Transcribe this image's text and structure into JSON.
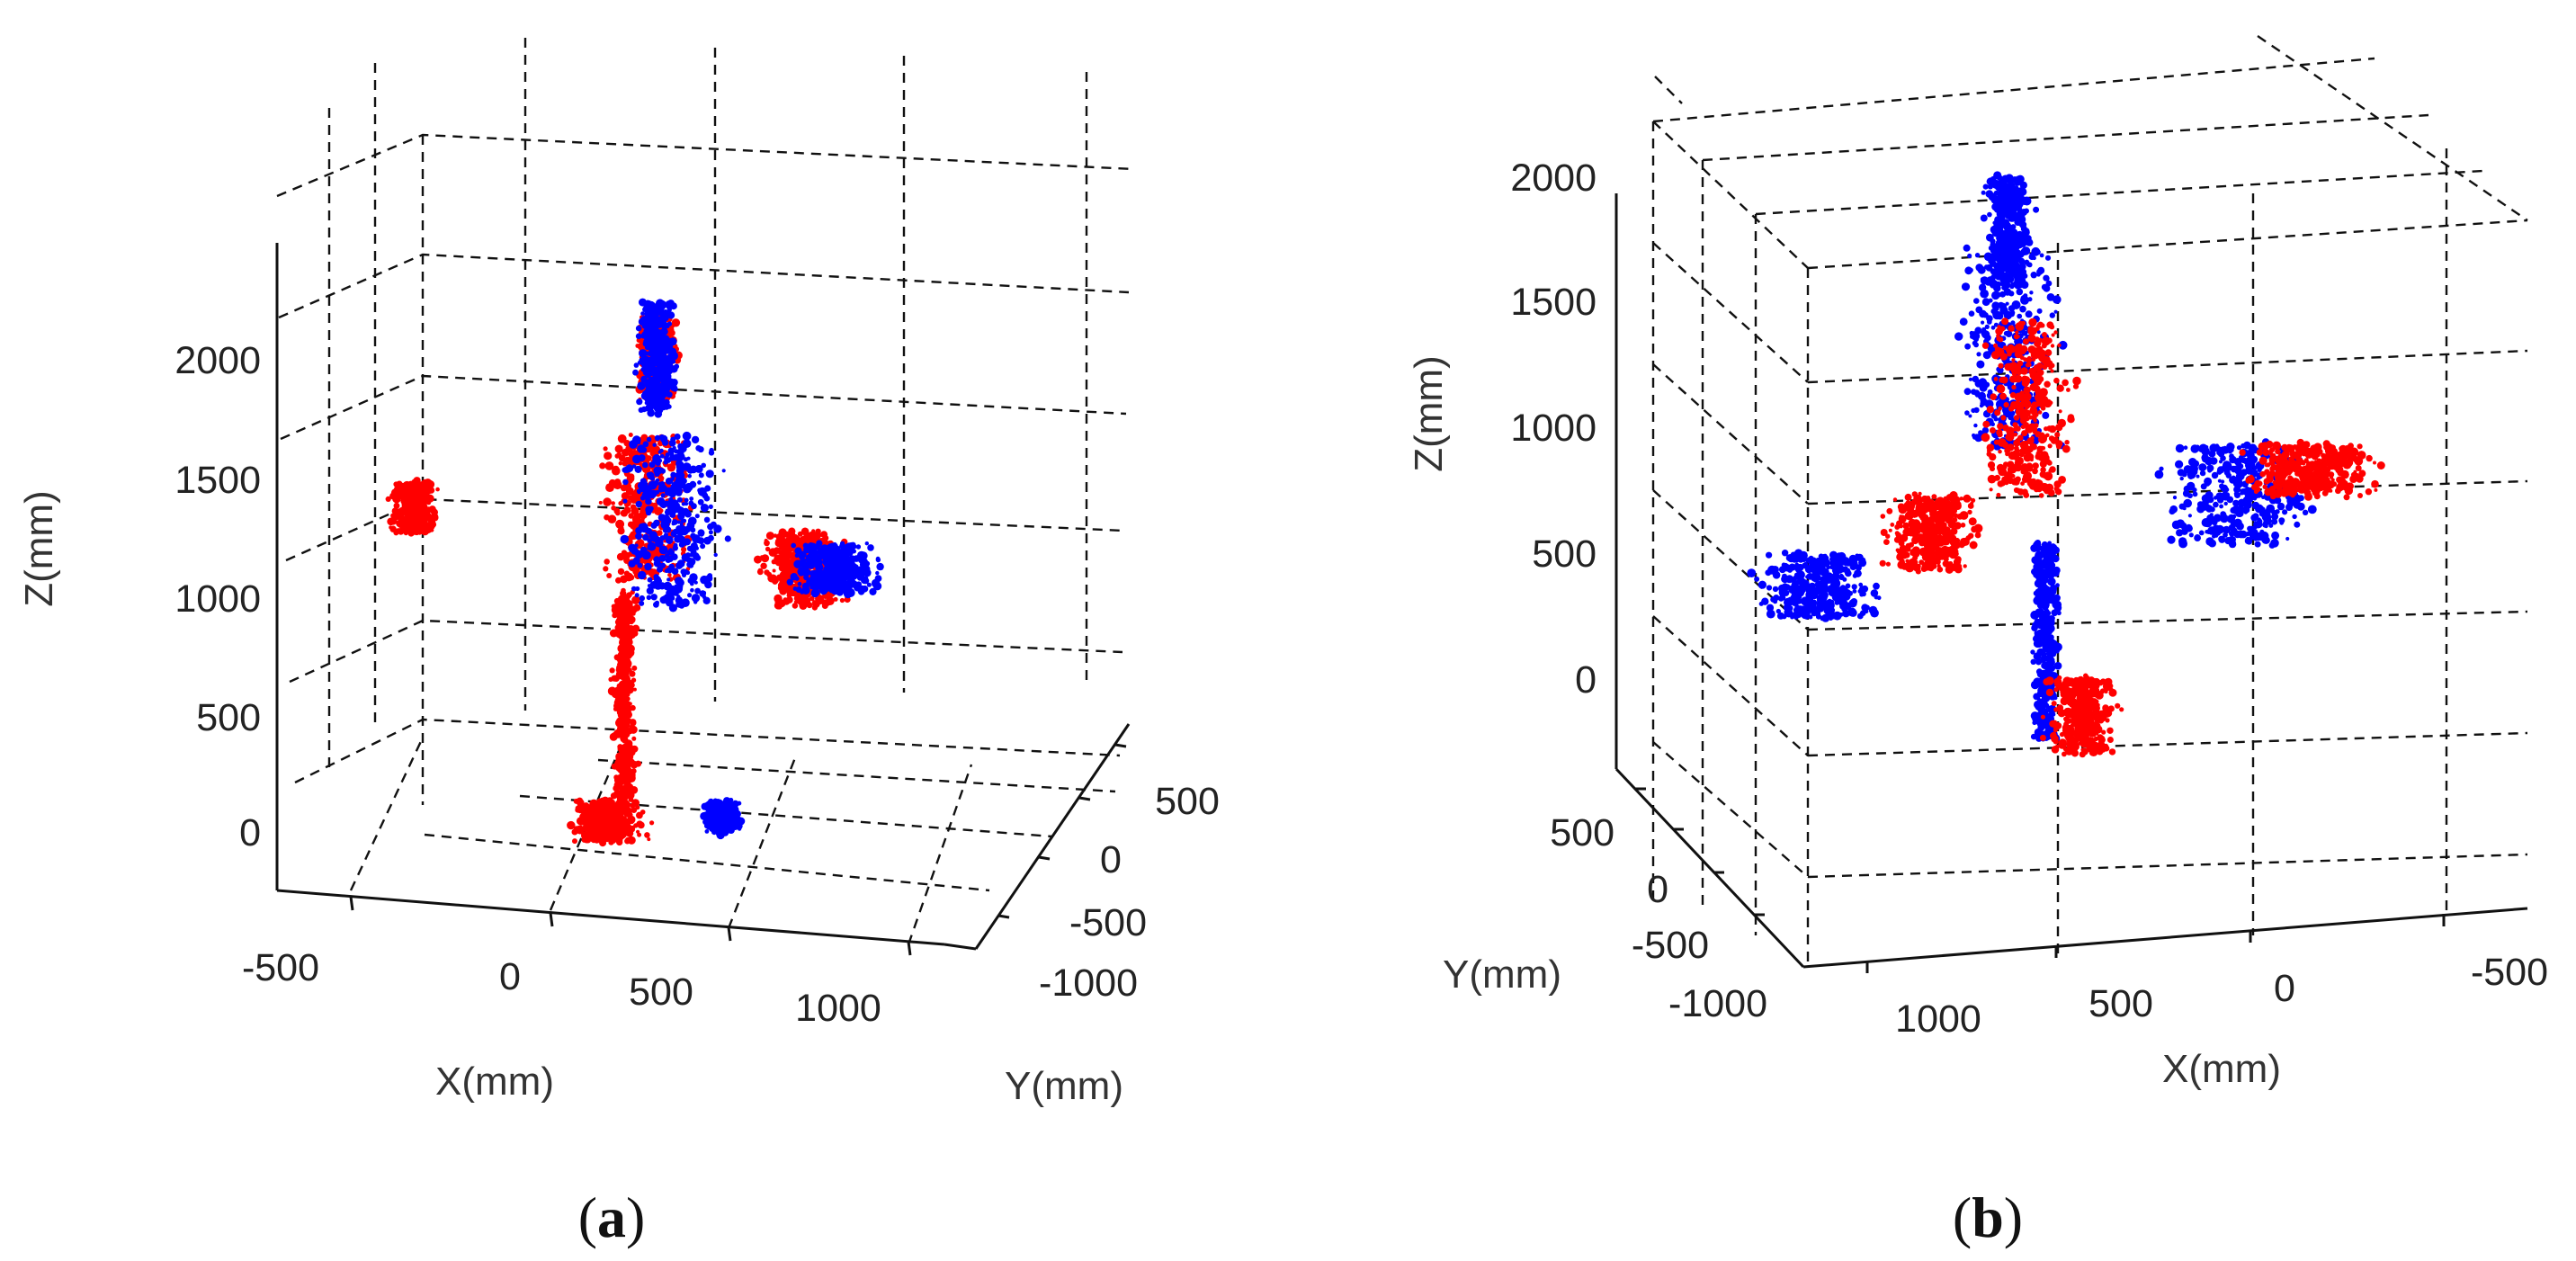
{
  "chart_data": [
    {
      "type": "scatter",
      "subtype": "3d-point-cloud",
      "panel_label": "a",
      "xlabel": "X(mm)",
      "ylabel": "Y(mm)",
      "zlabel": "Z(mm)",
      "x_ticks": [
        "-500",
        "0",
        "500",
        "1000"
      ],
      "y_ticks": [
        "500",
        "0",
        "-500",
        "-1000"
      ],
      "z_ticks": [
        "2000",
        "1500",
        "1000",
        "500",
        "0"
      ],
      "xlim": [
        -750,
        1300
      ],
      "ylim": [
        -1100,
        750
      ],
      "zlim": [
        -200,
        2400
      ],
      "grid": true,
      "series": [
        {
          "color": "#ff0000",
          "parts": [
            {
              "x": 220,
              "y": 0,
              "z": [
                1100,
                1700
              ],
              "spread": 170
            },
            {
              "x": 250,
              "y": 0,
              "z": [
                1850,
                2200
              ],
              "spread": 80
            },
            {
              "x": -500,
              "y": 0,
              "z": [
                1300,
                1500
              ],
              "spread": 90
            },
            {
              "x": 700,
              "y": 0,
              "z": [
                1000,
                1300
              ],
              "spread": 160
            },
            {
              "x": 150,
              "y": 0,
              "z": [
                200,
                1050
              ],
              "spread": 45
            },
            {
              "x": 100,
              "y": 0,
              "z": [
                20,
                180
              ],
              "spread": 140
            }
          ]
        },
        {
          "color": "#0000ff",
          "parts": [
            {
              "x": 250,
              "y": 0,
              "z": [
                1800,
                2250
              ],
              "spread": 70
            },
            {
              "x": 300,
              "y": 0,
              "z": [
                1000,
                1700
              ],
              "spread": 190
            },
            {
              "x": 800,
              "y": 0,
              "z": [
                1050,
                1250
              ],
              "spread": 170
            },
            {
              "x": 450,
              "y": 0,
              "z": [
                60,
                180
              ],
              "spread": 70
            }
          ]
        }
      ]
    },
    {
      "type": "scatter",
      "subtype": "3d-point-cloud",
      "panel_label": "b",
      "xlabel": "X(mm)",
      "ylabel": "Y(mm)",
      "zlabel": "Z(mm)",
      "x_ticks": [
        "1000",
        "500",
        "0",
        "-500"
      ],
      "y_ticks": [
        "500",
        "0",
        "-500",
        "-1000"
      ],
      "z_ticks": [
        "2000",
        "1500",
        "1000",
        "500",
        "0"
      ],
      "xlim": [
        -750,
        1300
      ],
      "ylim": [
        -1100,
        750
      ],
      "zlim": [
        -200,
        2400
      ],
      "grid": true,
      "series": [
        {
          "color": "#0000ff",
          "parts": [
            {
              "x": 400,
              "y": 0,
              "z": [
                1100,
                1900
              ],
              "spread": 170
            },
            {
              "x": 400,
              "y": 0,
              "z": [
                1750,
                2200
              ],
              "spread": 80
            },
            {
              "x": 900,
              "y": 0,
              "z": [
                400,
                650
              ],
              "spread": 200
            },
            {
              "x": -200,
              "y": 0,
              "z": [
                700,
                1100
              ],
              "spread": 250
            },
            {
              "x": 300,
              "y": 0,
              "z": [
                -100,
                700
              ],
              "spread": 45
            }
          ]
        },
        {
          "color": "#ff0000",
          "parts": [
            {
              "x": 350,
              "y": 0,
              "z": [
                900,
                1600
              ],
              "spread": 150
            },
            {
              "x": -400,
              "y": 0,
              "z": [
                900,
                1100
              ],
              "spread": 220
            },
            {
              "x": 600,
              "y": 0,
              "z": [
                600,
                900
              ],
              "spread": 150
            },
            {
              "x": 200,
              "y": 0,
              "z": [
                -150,
                150
              ],
              "spread": 110
            }
          ]
        }
      ]
    }
  ]
}
